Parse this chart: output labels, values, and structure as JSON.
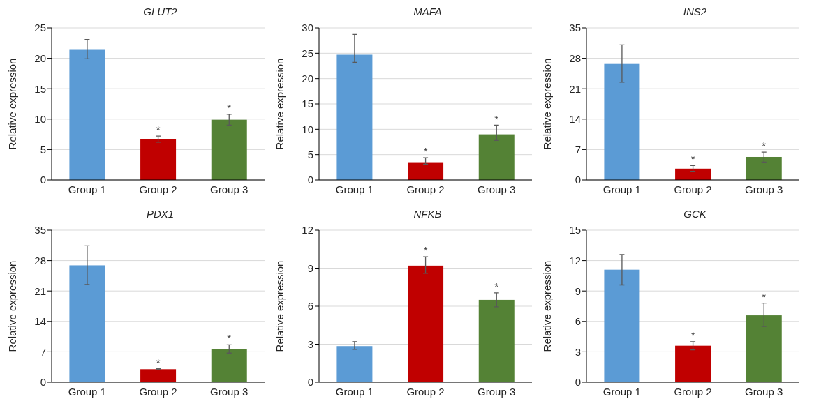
{
  "chart_data": [
    {
      "type": "bar",
      "title": "GLUT2",
      "ylabel": "Relative expression",
      "categories": [
        "Group 1",
        "Group 2",
        "Group 3"
      ],
      "values": [
        21.5,
        6.7,
        9.9
      ],
      "errors": [
        [
          19.9,
          23.1
        ],
        [
          6.2,
          7.2
        ],
        [
          9.0,
          10.8
        ]
      ],
      "colors": [
        "#5b9bd5",
        "#c00000",
        "#548235"
      ],
      "ylim": [
        0,
        25
      ],
      "yticks": [
        0,
        5,
        10,
        15,
        20,
        25
      ],
      "grid": "y",
      "annotations": [
        {
          "text": "*",
          "x": "Group 2",
          "y": 6.7
        },
        {
          "text": "*",
          "x": "Group 3",
          "y": 9.9
        }
      ]
    },
    {
      "type": "bar",
      "title": "MAFA",
      "ylabel": "Relative expression",
      "categories": [
        "Group 1",
        "Group 2",
        "Group 3"
      ],
      "values": [
        24.7,
        3.5,
        9.0
      ],
      "errors": [
        [
          23.2,
          28.7
        ],
        [
          3.1,
          4.4
        ],
        [
          7.8,
          10.8
        ]
      ],
      "colors": [
        "#5b9bd5",
        "#c00000",
        "#548235"
      ],
      "ylim": [
        0,
        30
      ],
      "yticks": [
        0,
        5,
        10,
        15,
        20,
        25,
        30
      ],
      "grid": "y",
      "annotations": [
        {
          "text": "*",
          "x": "Group 2",
          "y": 3.5
        },
        {
          "text": "*",
          "x": "Group 3",
          "y": 9.0
        }
      ]
    },
    {
      "type": "bar",
      "title": "INS2",
      "ylabel": "Relative expression",
      "categories": [
        "Group 1",
        "Group 2",
        "Group 3"
      ],
      "values": [
        26.7,
        2.6,
        5.3
      ],
      "errors": [
        [
          22.5,
          31.1
        ],
        [
          2.0,
          3.3
        ],
        [
          4.1,
          6.4
        ]
      ],
      "colors": [
        "#5b9bd5",
        "#c00000",
        "#548235"
      ],
      "ylim": [
        0,
        35
      ],
      "yticks": [
        0,
        7,
        14,
        21,
        28,
        35
      ],
      "grid": "y",
      "annotations": [
        {
          "text": "*",
          "x": "Group 2",
          "y": 2.6
        },
        {
          "text": "*",
          "x": "Group 3",
          "y": 5.3
        }
      ]
    },
    {
      "type": "bar",
      "title": "PDX1",
      "ylabel": "Relative expression",
      "categories": [
        "Group 1",
        "Group 2",
        "Group 3"
      ],
      "values": [
        26.9,
        3.0,
        7.7
      ],
      "errors": [
        [
          22.5,
          31.4
        ],
        [
          2.9,
          3.1
        ],
        [
          6.7,
          8.6
        ]
      ],
      "colors": [
        "#5b9bd5",
        "#c00000",
        "#548235"
      ],
      "ylim": [
        0,
        35
      ],
      "yticks": [
        0,
        7,
        14,
        21,
        28,
        35
      ],
      "grid": "y",
      "annotations": [
        {
          "text": "*",
          "x": "Group 2",
          "y": 3.0
        },
        {
          "text": "*",
          "x": "Group 3",
          "y": 7.7
        }
      ]
    },
    {
      "type": "bar",
      "title": "NFKB",
      "ylabel": "Relative expression",
      "categories": [
        "Group 1",
        "Group 2",
        "Group 3"
      ],
      "values": [
        2.85,
        9.2,
        6.5
      ],
      "errors": [
        [
          2.6,
          3.2
        ],
        [
          8.6,
          9.9
        ],
        [
          5.95,
          7.05
        ]
      ],
      "colors": [
        "#5b9bd5",
        "#c00000",
        "#548235"
      ],
      "ylim": [
        0,
        12
      ],
      "yticks": [
        0,
        3,
        6,
        9,
        12
      ],
      "grid": "y",
      "annotations": [
        {
          "text": "*",
          "x": "Group 2",
          "y": 9.2
        },
        {
          "text": "*",
          "x": "Group 3",
          "y": 6.5
        }
      ]
    },
    {
      "type": "bar",
      "title": "GCK",
      "ylabel": "Relative expression",
      "categories": [
        "Group 1",
        "Group 2",
        "Group 3"
      ],
      "values": [
        11.1,
        3.6,
        6.6
      ],
      "errors": [
        [
          9.6,
          12.6
        ],
        [
          3.2,
          4.0
        ],
        [
          5.5,
          7.8
        ]
      ],
      "colors": [
        "#5b9bd5",
        "#c00000",
        "#548235"
      ],
      "ylim": [
        0,
        15
      ],
      "yticks": [
        0,
        3,
        6,
        9,
        12,
        15
      ],
      "grid": "y",
      "annotations": [
        {
          "text": "*",
          "x": "Group 2",
          "y": 3.6
        },
        {
          "text": "*",
          "x": "Group 3",
          "y": 6.6
        }
      ]
    }
  ]
}
